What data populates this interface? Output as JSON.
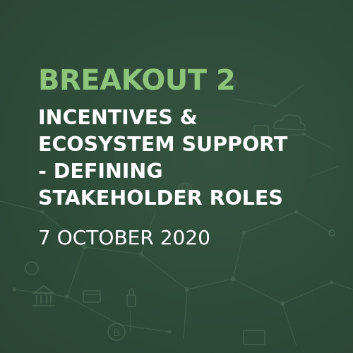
{
  "card": {
    "kicker": "BREAKOUT 2",
    "title_lines": [
      "INCENTIVES &",
      "ECOSYSTEM SUPPORT",
      "- DEFINING",
      "STAKEHOLDER ROLES"
    ],
    "date": "7 OCTOBER 2020"
  },
  "colors": {
    "background": "#2e4b3a",
    "kicker": "#8dc47a",
    "title": "#ffffff",
    "decoration": "#4a6b55"
  },
  "decorative_icons": [
    "bank-icon",
    "bitcoin-icon",
    "cloud-icon",
    "globe-icon",
    "card-icon",
    "network-node-icon"
  ]
}
